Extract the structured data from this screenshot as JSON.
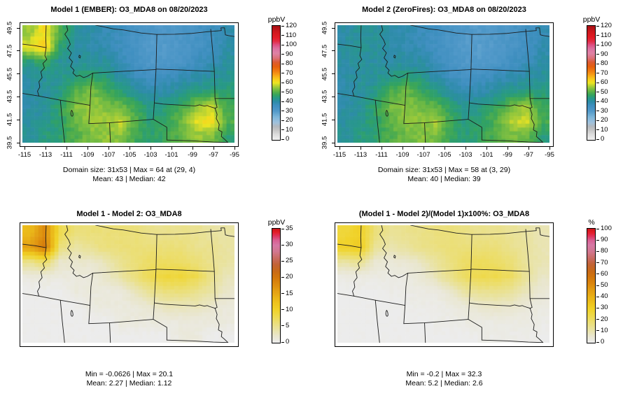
{
  "chart_data": {
    "type": "heatmap",
    "layout": "2x2 map panels with vertical colorbars",
    "x_axis": {
      "ticks": [
        "-115",
        "-113",
        "-111",
        "-109",
        "-107",
        "-105",
        "-103",
        "-101",
        "-99",
        "-97",
        "-95"
      ]
    },
    "y_axis": {
      "ticks": [
        "49.5",
        "47.5",
        "45.5",
        "43.5",
        "41.5",
        "39.5"
      ]
    },
    "scales": {
      "conc": {
        "unit": "ppbV",
        "min": 0,
        "max": 120,
        "ticks": [
          0,
          10,
          20,
          30,
          40,
          50,
          60,
          70,
          80,
          90,
          100,
          110,
          120
        ],
        "stops": [
          [
            0,
            "#f0f0f0"
          ],
          [
            5,
            "#dfdfdf"
          ],
          [
            10,
            "#c6c6c6"
          ],
          [
            14,
            "#b2b8be"
          ],
          [
            18,
            "#a0c2dd"
          ],
          [
            24,
            "#7db6da"
          ],
          [
            30,
            "#539aca"
          ],
          [
            36,
            "#3f8fc0"
          ],
          [
            40,
            "#2d8ca8"
          ],
          [
            44,
            "#289a85"
          ],
          [
            47,
            "#33a360"
          ],
          [
            50,
            "#52ae4a"
          ],
          [
            54,
            "#85c23f"
          ],
          [
            57,
            "#b8d233"
          ],
          [
            60,
            "#ede522"
          ],
          [
            64,
            "#f9cb1d"
          ],
          [
            68,
            "#f8a518"
          ],
          [
            72,
            "#f28113"
          ],
          [
            77,
            "#e6600d"
          ],
          [
            82,
            "#dc5a33"
          ],
          [
            86,
            "#dc7178"
          ],
          [
            91,
            "#df82a5"
          ],
          [
            96,
            "#dc74a2"
          ],
          [
            100,
            "#dd5184"
          ],
          [
            104,
            "#e22c44"
          ],
          [
            108,
            "#e31c26"
          ],
          [
            114,
            "#cf181d"
          ],
          [
            120,
            "#a81015"
          ]
        ]
      },
      "diff": {
        "unit": "ppbV",
        "min": 0,
        "max": 35,
        "ticks": [
          0,
          5,
          10,
          15,
          20,
          25,
          30,
          35
        ],
        "stops": [
          [
            0,
            "#ececec"
          ],
          [
            2,
            "#e9e6cd"
          ],
          [
            4,
            "#e9e3a4"
          ],
          [
            6,
            "#ebdf79"
          ],
          [
            8,
            "#eeda4e"
          ],
          [
            10,
            "#f0d32a"
          ],
          [
            12,
            "#eec51e"
          ],
          [
            14,
            "#e9b218"
          ],
          [
            16,
            "#e39e13"
          ],
          [
            18,
            "#dc8a0e"
          ],
          [
            20,
            "#d3770b"
          ],
          [
            22,
            "#c86a18"
          ],
          [
            24,
            "#c26336"
          ],
          [
            26,
            "#c96b62"
          ],
          [
            28,
            "#d2778f"
          ],
          [
            30,
            "#d678a6"
          ],
          [
            31.5,
            "#d95f93"
          ],
          [
            33,
            "#e03057"
          ],
          [
            34,
            "#e31d28"
          ],
          [
            35,
            "#cf161b"
          ]
        ]
      },
      "pct": {
        "unit": "%",
        "min": 0,
        "max": 100,
        "ticks": [
          0,
          10,
          20,
          30,
          40,
          50,
          60,
          70,
          80,
          90,
          100
        ],
        "stops": [
          [
            0,
            "#ececec"
          ],
          [
            6,
            "#e9e6cd"
          ],
          [
            11,
            "#e9e3a4"
          ],
          [
            17,
            "#ebdf79"
          ],
          [
            23,
            "#eeda4e"
          ],
          [
            29,
            "#f0d32a"
          ],
          [
            34,
            "#eec51e"
          ],
          [
            40,
            "#e9b218"
          ],
          [
            46,
            "#e39e13"
          ],
          [
            51,
            "#dc8a0e"
          ],
          [
            57,
            "#d3770b"
          ],
          [
            63,
            "#c86a18"
          ],
          [
            69,
            "#c26336"
          ],
          [
            74,
            "#c96b62"
          ],
          [
            80,
            "#d2778f"
          ],
          [
            86,
            "#d678a6"
          ],
          [
            90,
            "#d95f93"
          ],
          [
            94,
            "#e03057"
          ],
          [
            97,
            "#e31d28"
          ],
          [
            100,
            "#cf161b"
          ]
        ]
      }
    },
    "maps": [
      {
        "id": "model1-ember",
        "title": "Model 1 (EMBER): O3_MDA8 on 08/20/2023",
        "scale": "conc",
        "show_axes": true,
        "noise": 1.5,
        "stats": {
          "line1": "Domain size: 31x53 | Max = 64 at (29, 4)",
          "line2": "Mean: 43 |  Median: 42",
          "domain_size": "31x53",
          "max": 64,
          "max_location": "(29, 4)",
          "mean": 43,
          "median": 42
        },
        "grid": [
          [
            55,
            62,
            50,
            42,
            40,
            38,
            36,
            34,
            32,
            31,
            32,
            34,
            36,
            39
          ],
          [
            60,
            64,
            46,
            41,
            40,
            39,
            36,
            33,
            30,
            30,
            32,
            34,
            36,
            40
          ],
          [
            44,
            48,
            42,
            41,
            42,
            41,
            38,
            34,
            31,
            31,
            33,
            36,
            38,
            41
          ],
          [
            41,
            42,
            43,
            45,
            46,
            44,
            41,
            37,
            35,
            36,
            38,
            40,
            41,
            43
          ],
          [
            40,
            41,
            44,
            50,
            53,
            49,
            45,
            41,
            39,
            40,
            42,
            44,
            45,
            45
          ],
          [
            40,
            42,
            46,
            54,
            56,
            53,
            52,
            47,
            43,
            45,
            48,
            54,
            58,
            48
          ],
          [
            41,
            43,
            46,
            52,
            55,
            56,
            58,
            50,
            45,
            47,
            52,
            60,
            62,
            50
          ],
          [
            42,
            44,
            46,
            50,
            53,
            55,
            54,
            48,
            46,
            48,
            51,
            55,
            54,
            46
          ]
        ]
      },
      {
        "id": "model2-zerofires",
        "title": "Model 2 (ZeroFires): O3_MDA8 on 08/20/2023",
        "scale": "conc",
        "show_axes": true,
        "noise": 1.5,
        "stats": {
          "line1": "Domain size: 31x53 | Max = 58 at (3, 29)",
          "line2": "Mean: 40 |  Median: 39",
          "domain_size": "31x53",
          "max": 58,
          "max_location": "(3, 29)",
          "mean": 40,
          "median": 39
        },
        "grid": [
          [
            40,
            42,
            42,
            40,
            39,
            37,
            35,
            33,
            31,
            30,
            31,
            33,
            35,
            38
          ],
          [
            41,
            42,
            42,
            40,
            39,
            38,
            35,
            32,
            30,
            29,
            31,
            33,
            35,
            39
          ],
          [
            40,
            42,
            41,
            40,
            41,
            40,
            37,
            33,
            31,
            30,
            32,
            35,
            37,
            40
          ],
          [
            40,
            41,
            42,
            44,
            45,
            43,
            40,
            36,
            34,
            35,
            37,
            39,
            40,
            42
          ],
          [
            39,
            41,
            44,
            49,
            52,
            48,
            44,
            40,
            38,
            39,
            41,
            43,
            44,
            44
          ],
          [
            40,
            42,
            46,
            53,
            55,
            52,
            51,
            45,
            42,
            44,
            47,
            52,
            56,
            47
          ],
          [
            41,
            43,
            46,
            51,
            54,
            55,
            56,
            48,
            44,
            46,
            50,
            57,
            59,
            49
          ],
          [
            42,
            44,
            46,
            50,
            52,
            54,
            53,
            47,
            45,
            47,
            50,
            53,
            52,
            45
          ]
        ]
      },
      {
        "id": "difference",
        "title": "Model 1 - Model 2: O3_MDA8",
        "scale": "diff",
        "show_axes": false,
        "noise": 0.25,
        "stats": {
          "line1": "Min = -0.0626 | Max = 20.1",
          "line2": "Mean: 2.27 |  Median: 1.12",
          "min": -0.0626,
          "max": 20.1,
          "mean": 2.27,
          "median": 1.12
        },
        "grid": [
          [
            13,
            18,
            8,
            6,
            6,
            6,
            6,
            6,
            5,
            5,
            5,
            5,
            4,
            4
          ],
          [
            16,
            20,
            6,
            4,
            5,
            6,
            6,
            6,
            6,
            6,
            6,
            5,
            5,
            4
          ],
          [
            5,
            7,
            2,
            2,
            2,
            3,
            5,
            6,
            7,
            7,
            7,
            6,
            5,
            4
          ],
          [
            1,
            1,
            1,
            1,
            1,
            2,
            4,
            6,
            8,
            9,
            9,
            8,
            5,
            3
          ],
          [
            0,
            0,
            0,
            1,
            1,
            1,
            1,
            3,
            5,
            6,
            6,
            5,
            4,
            2
          ],
          [
            0,
            0,
            0,
            0,
            1,
            1,
            1,
            1,
            2,
            3,
            3,
            3,
            2,
            1
          ],
          [
            0,
            0,
            0,
            0,
            0,
            0,
            1,
            1,
            1,
            1,
            1,
            1,
            1,
            1
          ],
          [
            0,
            0,
            0,
            0,
            0,
            0,
            0,
            0,
            0,
            0,
            1,
            1,
            0,
            0
          ]
        ]
      },
      {
        "id": "percent-difference",
        "title": "(Model 1 - Model 2)/(Model 1)x100%: O3_MDA8",
        "scale": "pct",
        "show_axes": false,
        "noise": 0.6,
        "stats": {
          "line1": "Min = -0.2 | Max = 32.3",
          "line2": "Mean: 5.2 |  Median: 2.6",
          "min": -0.2,
          "max": 32.3,
          "mean": 5.2,
          "median": 2.6
        },
        "grid": [
          [
            26,
            30,
            17,
            13,
            14,
            15,
            16,
            17,
            15,
            14,
            14,
            13,
            11,
            9
          ],
          [
            30,
            32,
            13,
            10,
            12,
            15,
            16,
            17,
            17,
            17,
            17,
            14,
            12,
            9
          ],
          [
            11,
            14,
            5,
            4,
            5,
            7,
            12,
            16,
            20,
            21,
            20,
            17,
            12,
            9
          ],
          [
            2,
            2,
            2,
            2,
            2,
            4,
            9,
            15,
            21,
            23,
            23,
            20,
            12,
            7
          ],
          [
            0,
            0,
            0,
            1,
            1,
            2,
            2,
            6,
            12,
            14,
            14,
            12,
            8,
            4
          ],
          [
            0,
            0,
            0,
            0,
            1,
            1,
            1,
            2,
            4,
            6,
            7,
            6,
            4,
            2
          ],
          [
            0,
            0,
            0,
            0,
            0,
            0,
            1,
            1,
            2,
            2,
            2,
            2,
            2,
            1
          ],
          [
            0,
            0,
            0,
            0,
            0,
            0,
            0,
            0,
            0,
            1,
            1,
            1,
            1,
            0
          ]
        ]
      }
    ]
  }
}
